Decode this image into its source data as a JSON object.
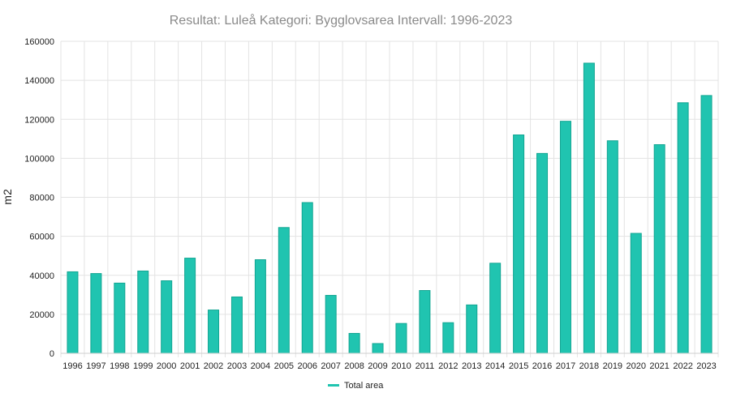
{
  "chart_data": {
    "type": "bar",
    "title": "Resultat: Luleå Kategori: Bygglovsarea Intervall: 1996-2023",
    "xlabel": "",
    "ylabel": "m2",
    "ylim": [
      0,
      160000
    ],
    "yticks": [
      0,
      20000,
      40000,
      60000,
      80000,
      100000,
      120000,
      140000,
      160000
    ],
    "grid": true,
    "legend_position": "bottom",
    "categories": [
      "1996",
      "1997",
      "1998",
      "1999",
      "2000",
      "2001",
      "2002",
      "2003",
      "2004",
      "2005",
      "2006",
      "2007",
      "2008",
      "2009",
      "2010",
      "2011",
      "2012",
      "2013",
      "2014",
      "2015",
      "2016",
      "2017",
      "2018",
      "2019",
      "2020",
      "2021",
      "2022",
      "2023"
    ],
    "series": [
      {
        "name": "Total area",
        "color": "#20c4b0",
        "values": [
          41800,
          40900,
          36000,
          42200,
          37200,
          48800,
          22200,
          28900,
          48000,
          64500,
          77300,
          29700,
          10200,
          5000,
          15300,
          32200,
          15700,
          24800,
          46200,
          112000,
          102500,
          119000,
          148800,
          109000,
          61500,
          107000,
          128500,
          132200
        ]
      }
    ]
  }
}
